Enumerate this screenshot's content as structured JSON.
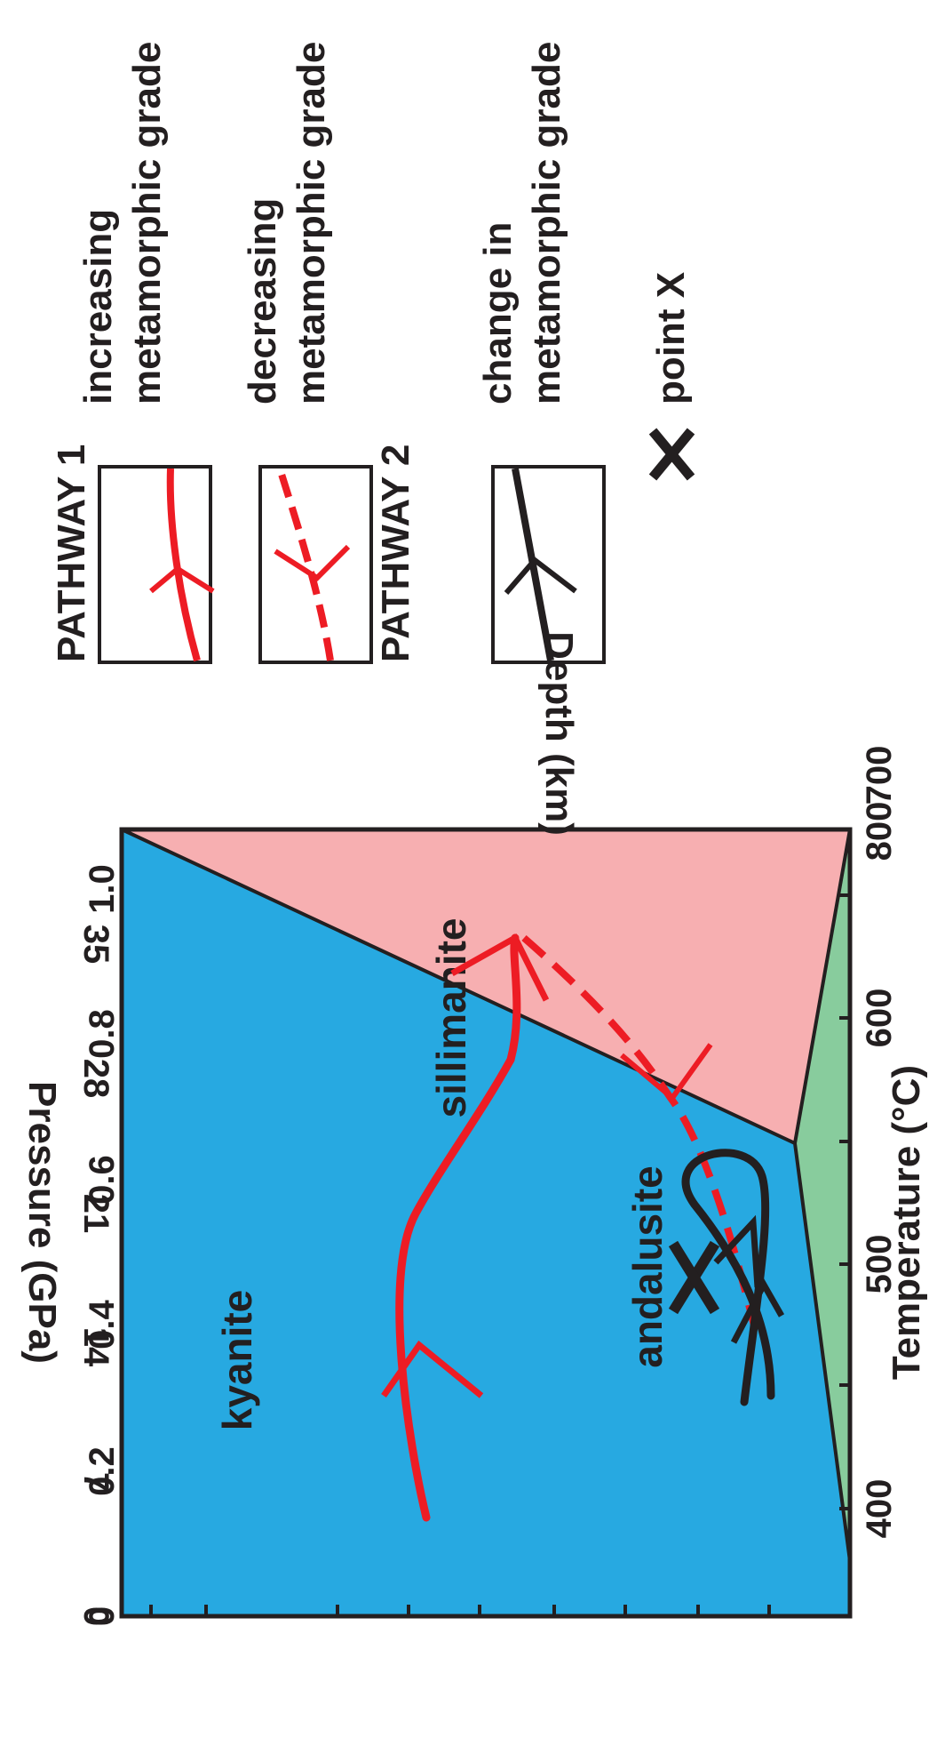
{
  "diagram": {
    "x_axis": {
      "label": "Temperature (°C)",
      "ticks": [
        "400",
        "500",
        "600",
        "700",
        "800"
      ]
    },
    "y_axis": {
      "label": "Pressure (GPa)",
      "ticks": [
        "0",
        "0.2",
        "0.4",
        "0.6",
        "0.8",
        "1.0"
      ]
    },
    "depth_axis": {
      "label": "Depth (km)",
      "ticks": [
        "0",
        "7",
        "14",
        "21",
        "28",
        "35"
      ]
    },
    "regions": {
      "kyanite": {
        "label": "kyanite",
        "color": "#27a9e1"
      },
      "sillimanite": {
        "label": "sillimanite",
        "color": "#f7afb1"
      },
      "andalusite": {
        "label": "andalusite",
        "color": "#88cc9d"
      }
    },
    "pathway_color": "#ed1c24",
    "pathway2_color": "#231f20"
  },
  "legend": {
    "pathway1_title": "PATHWAY 1",
    "increasing_line1": "increasing",
    "increasing_line2": "metamorphic grade",
    "decreasing_line1": "decreasing",
    "decreasing_line2": "metamorphic grade",
    "pathway2_title": "PATHWAY 2",
    "change_line1": "change in",
    "change_line2": "metamorphic grade",
    "point_label": "point X"
  }
}
